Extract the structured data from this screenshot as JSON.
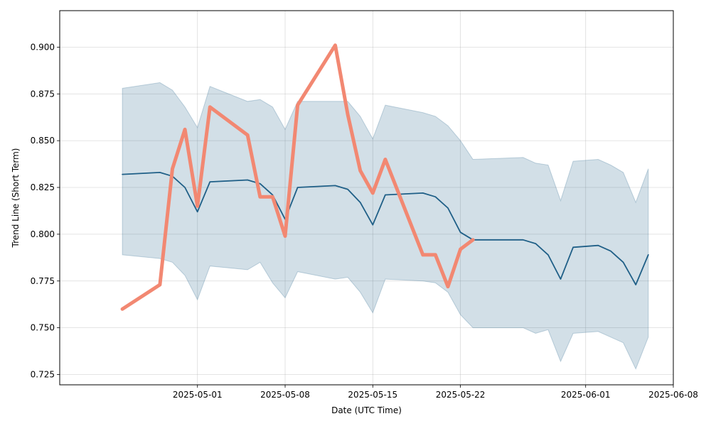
{
  "chart_data": {
    "type": "line",
    "xlabel": "Date (UTC Time)",
    "ylabel": "Trend Line (Short Term)",
    "xlim": [
      "2025-04-20",
      "2025-06-08"
    ],
    "ylim": [
      0.7195,
      0.9195
    ],
    "grid": true,
    "x_ticks": [
      {
        "date": "2025-05-01",
        "label": "2025-05-01"
      },
      {
        "date": "2025-05-08",
        "label": "2025-05-08"
      },
      {
        "date": "2025-05-15",
        "label": "2025-05-15"
      },
      {
        "date": "2025-05-22",
        "label": "2025-05-22"
      },
      {
        "date": "2025-06-01",
        "label": "2025-06-01"
      },
      {
        "date": "2025-06-08",
        "label": "2025-06-08"
      }
    ],
    "y_ticks": [
      {
        "value": 0.725,
        "label": "0.725"
      },
      {
        "value": 0.75,
        "label": "0.750"
      },
      {
        "value": 0.775,
        "label": "0.775"
      },
      {
        "value": 0.8,
        "label": "0.800"
      },
      {
        "value": 0.825,
        "label": "0.825"
      },
      {
        "value": 0.85,
        "label": "0.850"
      },
      {
        "value": 0.875,
        "label": "0.875"
      },
      {
        "value": 0.9,
        "label": "0.900"
      }
    ],
    "band": {
      "color": "#1f5f87",
      "points": [
        {
          "x": "2025-04-25",
          "low": 0.789,
          "high": 0.878
        },
        {
          "x": "2025-04-28",
          "low": 0.787,
          "high": 0.881
        },
        {
          "x": "2025-04-29",
          "low": 0.785,
          "high": 0.877
        },
        {
          "x": "2025-04-30",
          "low": 0.778,
          "high": 0.868
        },
        {
          "x": "2025-05-01",
          "low": 0.765,
          "high": 0.857
        },
        {
          "x": "2025-05-02",
          "low": 0.783,
          "high": 0.879
        },
        {
          "x": "2025-05-05",
          "low": 0.781,
          "high": 0.871
        },
        {
          "x": "2025-05-06",
          "low": 0.785,
          "high": 0.872
        },
        {
          "x": "2025-05-07",
          "low": 0.774,
          "high": 0.868
        },
        {
          "x": "2025-05-08",
          "low": 0.766,
          "high": 0.856
        },
        {
          "x": "2025-05-09",
          "low": 0.78,
          "high": 0.871
        },
        {
          "x": "2025-05-12",
          "low": 0.776,
          "high": 0.871
        },
        {
          "x": "2025-05-13",
          "low": 0.777,
          "high": 0.871
        },
        {
          "x": "2025-05-14",
          "low": 0.769,
          "high": 0.863
        },
        {
          "x": "2025-05-15",
          "low": 0.758,
          "high": 0.851
        },
        {
          "x": "2025-05-16",
          "low": 0.776,
          "high": 0.869
        },
        {
          "x": "2025-05-19",
          "low": 0.775,
          "high": 0.865
        },
        {
          "x": "2025-05-20",
          "low": 0.774,
          "high": 0.863
        },
        {
          "x": "2025-05-21",
          "low": 0.769,
          "high": 0.858
        },
        {
          "x": "2025-05-22",
          "low": 0.757,
          "high": 0.85
        },
        {
          "x": "2025-05-23",
          "low": 0.75,
          "high": 0.84
        },
        {
          "x": "2025-05-27",
          "low": 0.75,
          "high": 0.841
        },
        {
          "x": "2025-05-28",
          "low": 0.747,
          "high": 0.838
        },
        {
          "x": "2025-05-29",
          "low": 0.749,
          "high": 0.837
        },
        {
          "x": "2025-05-30",
          "low": 0.732,
          "high": 0.818
        },
        {
          "x": "2025-05-31",
          "low": 0.747,
          "high": 0.839
        },
        {
          "x": "2025-06-02",
          "low": 0.748,
          "high": 0.84
        },
        {
          "x": "2025-06-03",
          "low": 0.745,
          "high": 0.837
        },
        {
          "x": "2025-06-04",
          "low": 0.742,
          "high": 0.833
        },
        {
          "x": "2025-06-05",
          "low": 0.728,
          "high": 0.817
        },
        {
          "x": "2025-06-06",
          "low": 0.745,
          "high": 0.835
        }
      ]
    },
    "series": [
      {
        "key": "trend",
        "color": "#1f5f87",
        "points": [
          {
            "x": "2025-04-25",
            "y": 0.832
          },
          {
            "x": "2025-04-28",
            "y": 0.833
          },
          {
            "x": "2025-04-29",
            "y": 0.831
          },
          {
            "x": "2025-04-30",
            "y": 0.825
          },
          {
            "x": "2025-05-01",
            "y": 0.812
          },
          {
            "x": "2025-05-02",
            "y": 0.828
          },
          {
            "x": "2025-05-05",
            "y": 0.829
          },
          {
            "x": "2025-05-06",
            "y": 0.827
          },
          {
            "x": "2025-05-07",
            "y": 0.821
          },
          {
            "x": "2025-05-08",
            "y": 0.808
          },
          {
            "x": "2025-05-09",
            "y": 0.825
          },
          {
            "x": "2025-05-12",
            "y": 0.826
          },
          {
            "x": "2025-05-13",
            "y": 0.824
          },
          {
            "x": "2025-05-14",
            "y": 0.817
          },
          {
            "x": "2025-05-15",
            "y": 0.805
          },
          {
            "x": "2025-05-16",
            "y": 0.821
          },
          {
            "x": "2025-05-19",
            "y": 0.822
          },
          {
            "x": "2025-05-20",
            "y": 0.82
          },
          {
            "x": "2025-05-21",
            "y": 0.814
          },
          {
            "x": "2025-05-22",
            "y": 0.801
          },
          {
            "x": "2025-05-23",
            "y": 0.797
          },
          {
            "x": "2025-05-27",
            "y": 0.797
          },
          {
            "x": "2025-05-28",
            "y": 0.795
          },
          {
            "x": "2025-05-29",
            "y": 0.789
          },
          {
            "x": "2025-05-30",
            "y": 0.776
          },
          {
            "x": "2025-05-31",
            "y": 0.793
          },
          {
            "x": "2025-06-02",
            "y": 0.794
          },
          {
            "x": "2025-06-03",
            "y": 0.791
          },
          {
            "x": "2025-06-04",
            "y": 0.785
          },
          {
            "x": "2025-06-05",
            "y": 0.773
          },
          {
            "x": "2025-06-06",
            "y": 0.789
          }
        ]
      },
      {
        "key": "actual",
        "color": "#f28872",
        "points": [
          {
            "x": "2025-04-25",
            "y": 0.76
          },
          {
            "x": "2025-04-28",
            "y": 0.773
          },
          {
            "x": "2025-04-29",
            "y": 0.835
          },
          {
            "x": "2025-04-30",
            "y": 0.856
          },
          {
            "x": "2025-05-01",
            "y": 0.815
          },
          {
            "x": "2025-05-02",
            "y": 0.868
          },
          {
            "x": "2025-05-05",
            "y": 0.853
          },
          {
            "x": "2025-05-06",
            "y": 0.82
          },
          {
            "x": "2025-05-07",
            "y": 0.82
          },
          {
            "x": "2025-05-08",
            "y": 0.799
          },
          {
            "x": "2025-05-09",
            "y": 0.869
          },
          {
            "x": "2025-05-12",
            "y": 0.901
          },
          {
            "x": "2025-05-13",
            "y": 0.864
          },
          {
            "x": "2025-05-14",
            "y": 0.834
          },
          {
            "x": "2025-05-15",
            "y": 0.822
          },
          {
            "x": "2025-05-16",
            "y": 0.84
          },
          {
            "x": "2025-05-19",
            "y": 0.789
          },
          {
            "x": "2025-05-20",
            "y": 0.789
          },
          {
            "x": "2025-05-21",
            "y": 0.772
          },
          {
            "x": "2025-05-22",
            "y": 0.792
          },
          {
            "x": "2025-05-23",
            "y": 0.797
          }
        ]
      }
    ]
  }
}
